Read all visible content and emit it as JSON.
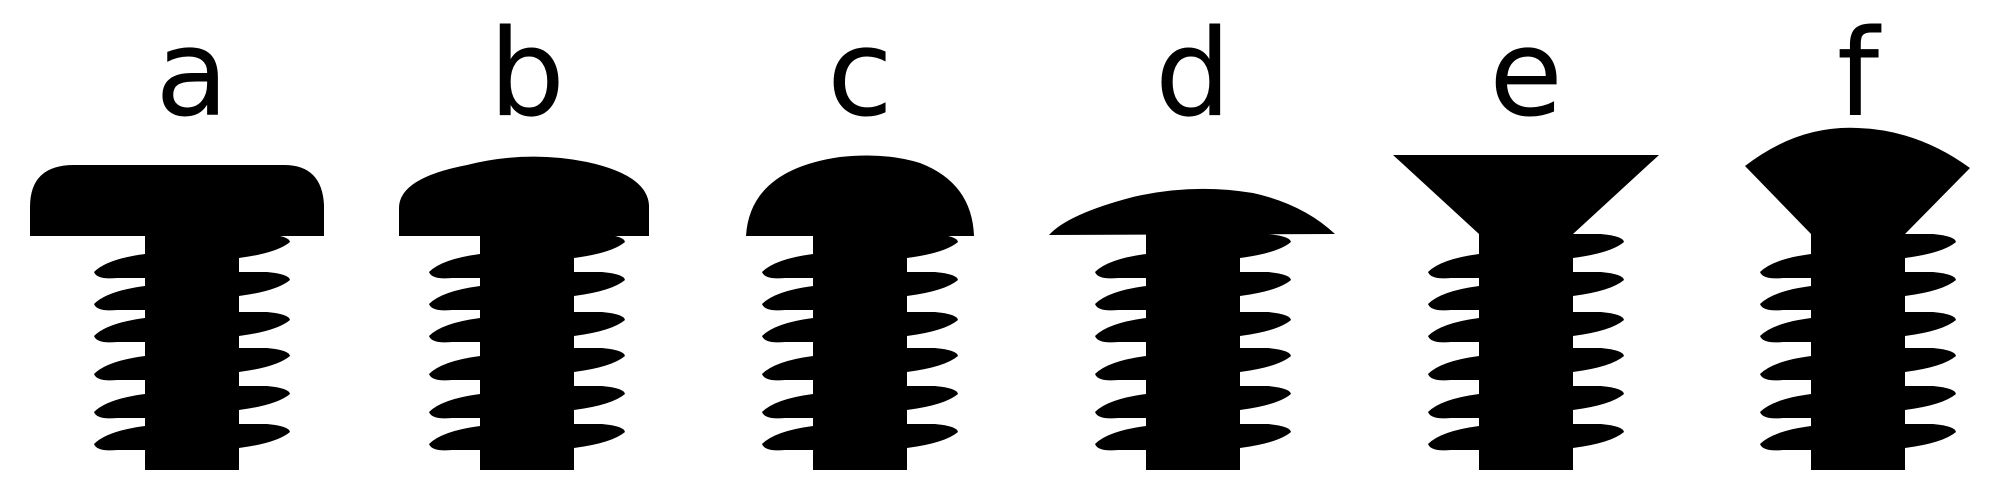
{
  "diagram": {
    "ink_color": "#000000",
    "background": "#ffffff",
    "screws": [
      {
        "label": "a",
        "head": "pan-flat-top"
      },
      {
        "label": "b",
        "head": "pan-domed"
      },
      {
        "label": "c",
        "head": "round"
      },
      {
        "label": "d",
        "head": "truss"
      },
      {
        "label": "e",
        "head": "countersunk-flat"
      },
      {
        "label": "f",
        "head": "countersunk-oval"
      }
    ]
  }
}
